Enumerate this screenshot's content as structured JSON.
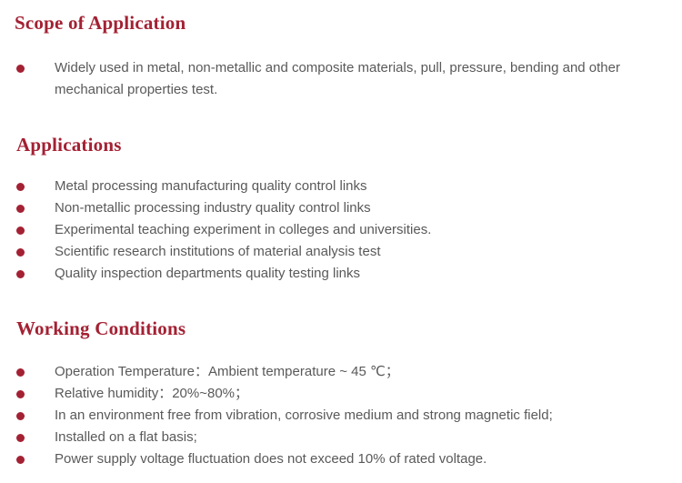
{
  "page": {
    "accent_color": "#A32133",
    "body_text_color": "#595959",
    "background_color": "#ffffff"
  },
  "sections": [
    {
      "title": "Scope of Application",
      "items": [
        "Widely used in metal, non-metallic and composite materials, pull, pressure, bending and other mechanical properties test."
      ]
    },
    {
      "title": "Applications",
      "items": [
        "Metal processing manufacturing quality control links",
        "Non-metallic processing industry quality control links",
        "Experimental teaching experiment in colleges and universities.",
        "Scientific research institutions of material analysis test",
        "Quality inspection departments quality testing links"
      ]
    },
    {
      "title": "Working Conditions",
      "items": [
        "Operation Temperature：Ambient temperature ~ 45 ℃；",
        "Relative humidity：20%~80%；",
        "In an environment free from vibration, corrosive medium and strong magnetic field;",
        "Installed on a flat basis;",
        "Power supply voltage fluctuation does not exceed 10% of rated voltage."
      ]
    }
  ]
}
